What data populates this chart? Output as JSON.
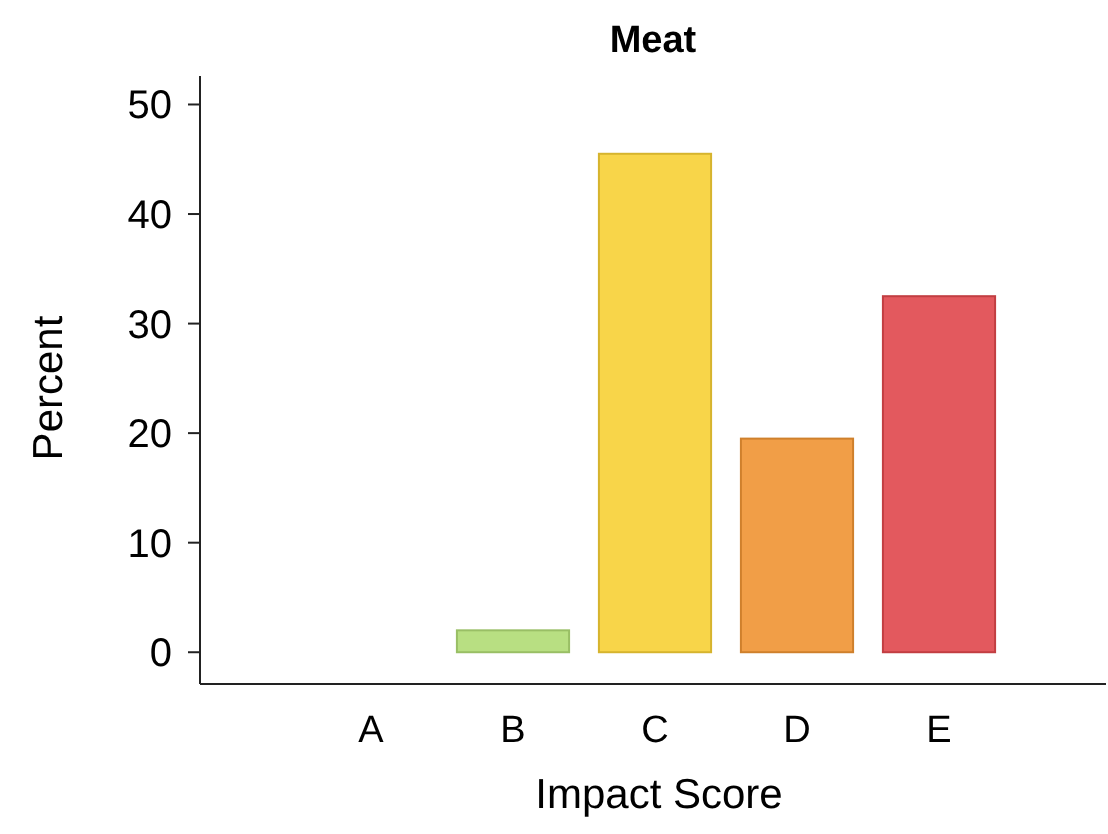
{
  "chart_data": {
    "type": "bar",
    "title": "Meat",
    "xlabel": "Impact Score",
    "ylabel": "Percent",
    "categories": [
      "A",
      "B",
      "C",
      "D",
      "E"
    ],
    "values": [
      0,
      2,
      45.5,
      19.5,
      32.5
    ],
    "colors": [
      "#1a9850",
      "#b0dc74",
      "#f7d035",
      "#ef9433",
      "#e0474c"
    ],
    "ylim": [
      -2.9,
      52.6
    ],
    "yticks": [
      0,
      10,
      20,
      30,
      40,
      50
    ],
    "grid": false
  }
}
